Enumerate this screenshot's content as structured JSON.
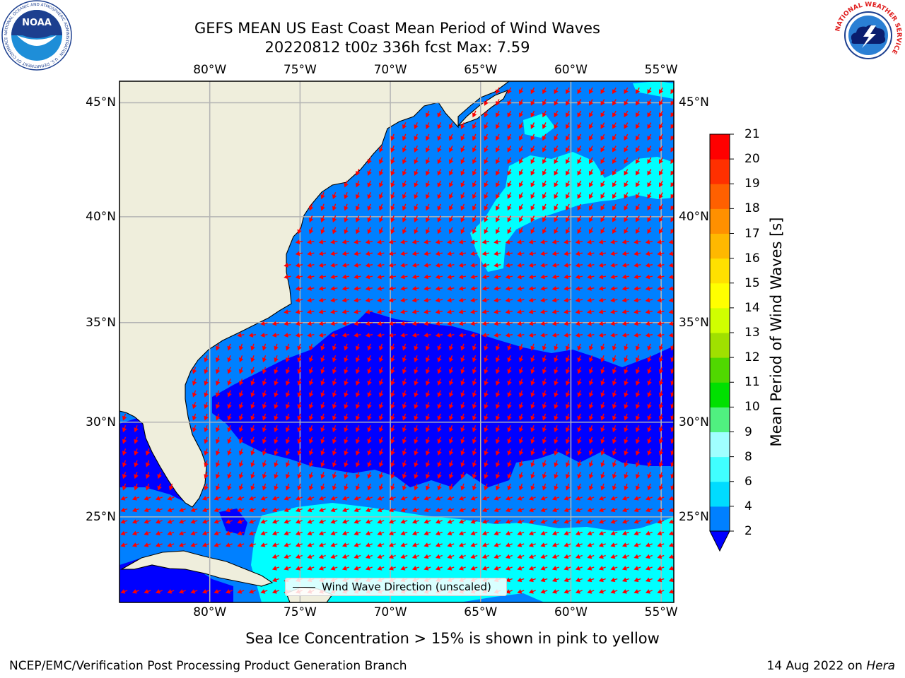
{
  "title": {
    "line1": "GEFS MEAN US East Coast Mean Period of Wind Waves",
    "line2": "20220812 t00z 336h fcst   Max: 7.59"
  },
  "map": {
    "lon_labels": [
      "80°W",
      "75°W",
      "70°W",
      "65°W",
      "60°W",
      "55°W"
    ],
    "lat_labels": [
      "45°N",
      "40°N",
      "35°N",
      "30°N",
      "25°N"
    ],
    "lon_range": [
      -85,
      -54.3
    ],
    "lat_range": [
      20.3,
      45.9
    ],
    "grid": true,
    "legend_label": "Wind Wave Direction (unscaled)",
    "colors": {
      "land": "#efeedc",
      "gridline": "#b4b4b4",
      "arrows": "#ff0000",
      "coastline": "#000000"
    }
  },
  "colorbar": {
    "label": "Mean Period of Wind Waves [s]",
    "ticks": [
      "2",
      "4",
      "6",
      "8",
      "9",
      "10",
      "11",
      "12",
      "13",
      "14",
      "15",
      "16",
      "17",
      "18",
      "19",
      "20",
      "21"
    ],
    "colors": [
      "#0080ff",
      "#00dcff",
      "#40ffff",
      "#a0ffff",
      "#50f080",
      "#00e000",
      "#50d800",
      "#a0e000",
      "#d0ff00",
      "#ffff00",
      "#ffe000",
      "#ffb800",
      "#ff9000",
      "#ff6000",
      "#ff3000",
      "#ff0000"
    ],
    "under_color": "#0000ff"
  },
  "caption": "Sea Ice Concentration > 15% is shown in pink to yellow",
  "footer": {
    "left": "NCEP/EMC/Verification Post Processing Product Generation Branch",
    "right_prefix": "14 Aug 2022 on ",
    "right_host": "Hera"
  },
  "logos": {
    "noaa_text": "NOAA",
    "noaa_ring_text": "NATIONAL OCEANIC AND ATMOSPHERIC ADMINISTRATION · U.S. DEPARTMENT OF COMMERCE",
    "nws_ring_text": "NATIONAL WEATHER SERVICE"
  }
}
